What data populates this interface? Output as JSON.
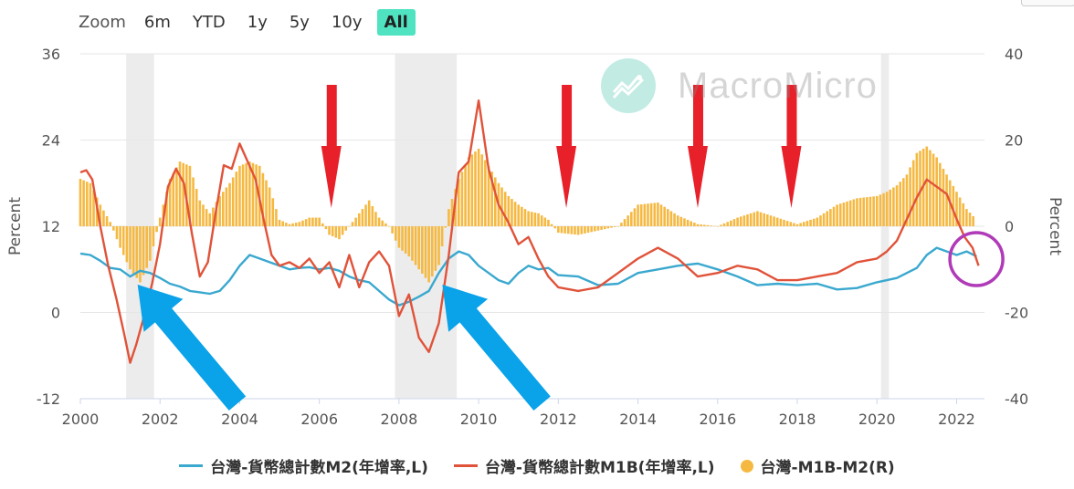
{
  "zoom": {
    "label": "Zoom",
    "buttons": [
      "6m",
      "YTD",
      "1y",
      "5y",
      "10y",
      "All"
    ],
    "active": "All"
  },
  "watermark": "MacroMicro",
  "colors": {
    "m2": "#3aa8cf",
    "m1b": "#e0533a",
    "diff": "#f5b942",
    "recession": "#ececec",
    "red_arrow": "#e8202a",
    "blue_arrow": "#0aa2e8",
    "circle": "#b03ab8",
    "active_zoom": "#50e3c2"
  },
  "legend": [
    {
      "name": "台灣-貨幣總計數M2(年增率,L)",
      "color": "#3aa8cf",
      "marker": "line"
    },
    {
      "name": "台灣-貨幣總計數M1B(年增率,L)",
      "color": "#e0533a",
      "marker": "line"
    },
    {
      "name": "台灣-M1B-M2(R)",
      "color": "#f5b942",
      "marker": "dot"
    }
  ],
  "chart_data": {
    "type": "line",
    "title": "",
    "xlabel": "",
    "ylabel_left": "Percent",
    "ylabel_right": "Percent",
    "xlim": [
      2000,
      2022.7
    ],
    "ylim_left": [
      -12,
      36
    ],
    "ylim_right": [
      -40,
      40
    ],
    "x_ticks": [
      "2000",
      "2002",
      "2004",
      "2006",
      "2008",
      "2010",
      "2012",
      "2014",
      "2016",
      "2018",
      "2020",
      "2022"
    ],
    "y_ticks_left": [
      "-12",
      "0",
      "12",
      "24",
      "36"
    ],
    "y_ticks_right": [
      "-40",
      "-20",
      "0",
      "20",
      "40"
    ],
    "grid": true,
    "recession_bands": [
      [
        2001.15,
        2001.85
      ],
      [
        2007.9,
        2009.45
      ],
      [
        2020.1,
        2020.3
      ]
    ],
    "series": [
      {
        "name": "台灣-貨幣總計數M2(年增率,L)",
        "axis": "left",
        "style": "line",
        "x": [
          2000.0,
          2000.25,
          2000.5,
          2000.75,
          2001.0,
          2001.25,
          2001.5,
          2001.75,
          2002.0,
          2002.25,
          2002.5,
          2002.75,
          2003.0,
          2003.25,
          2003.5,
          2003.75,
          2004.0,
          2004.25,
          2004.5,
          2004.75,
          2005.0,
          2005.25,
          2005.5,
          2005.75,
          2006.0,
          2006.25,
          2006.5,
          2006.75,
          2007.0,
          2007.25,
          2007.5,
          2007.75,
          2008.0,
          2008.25,
          2008.5,
          2008.75,
          2009.0,
          2009.25,
          2009.5,
          2009.75,
          2010.0,
          2010.25,
          2010.5,
          2010.75,
          2011.0,
          2011.25,
          2011.5,
          2011.75,
          2012.0,
          2012.5,
          2013.0,
          2013.5,
          2014.0,
          2014.5,
          2015.0,
          2015.5,
          2016.0,
          2016.5,
          2017.0,
          2017.5,
          2018.0,
          2018.5,
          2019.0,
          2019.5,
          2020.0,
          2020.5,
          2021.0,
          2021.25,
          2021.5,
          2021.75,
          2022.0,
          2022.25,
          2022.5
        ],
        "values": [
          8.2,
          8.0,
          7.2,
          6.2,
          6.0,
          5.0,
          5.8,
          5.5,
          4.8,
          4.0,
          3.6,
          3.0,
          2.8,
          2.6,
          3.0,
          4.5,
          6.5,
          8.0,
          7.5,
          7.0,
          6.5,
          6.0,
          6.2,
          6.3,
          6.0,
          6.2,
          5.8,
          5.0,
          4.5,
          4.2,
          3.0,
          1.8,
          1.0,
          1.5,
          2.2,
          3.0,
          5.5,
          7.5,
          8.5,
          8.0,
          6.5,
          5.5,
          4.5,
          4.0,
          5.5,
          6.5,
          6.0,
          6.2,
          5.2,
          5.0,
          3.8,
          4.0,
          5.5,
          6.0,
          6.5,
          6.8,
          6.0,
          5.0,
          3.8,
          4.0,
          3.8,
          4.0,
          3.2,
          3.4,
          4.2,
          4.8,
          6.2,
          8.0,
          9.0,
          8.5,
          8.0,
          8.5,
          7.8
        ]
      },
      {
        "name": "台灣-貨幣總計數M1B(年增率,L)",
        "axis": "left",
        "style": "line",
        "x": [
          2000.0,
          2000.15,
          2000.3,
          2000.5,
          2000.7,
          2000.9,
          2001.1,
          2001.25,
          2001.4,
          2001.6,
          2001.8,
          2002.0,
          2002.2,
          2002.4,
          2002.6,
          2002.8,
          2003.0,
          2003.2,
          2003.4,
          2003.6,
          2003.8,
          2004.0,
          2004.2,
          2004.4,
          2004.6,
          2004.8,
          2005.0,
          2005.25,
          2005.5,
          2005.75,
          2006.0,
          2006.25,
          2006.5,
          2006.75,
          2007.0,
          2007.25,
          2007.5,
          2007.75,
          2008.0,
          2008.25,
          2008.5,
          2008.75,
          2009.0,
          2009.25,
          2009.5,
          2009.75,
          2010.0,
          2010.25,
          2010.5,
          2010.75,
          2011.0,
          2011.25,
          2011.5,
          2011.75,
          2012.0,
          2012.5,
          2013.0,
          2013.5,
          2014.0,
          2014.5,
          2015.0,
          2015.5,
          2016.0,
          2016.5,
          2017.0,
          2017.5,
          2018.0,
          2018.5,
          2019.0,
          2019.5,
          2020.0,
          2020.25,
          2020.5,
          2020.75,
          2021.0,
          2021.25,
          2021.5,
          2021.75,
          2022.0,
          2022.2,
          2022.4,
          2022.55
        ],
        "values": [
          19.5,
          19.8,
          18.5,
          12.0,
          6.5,
          2.0,
          -3.0,
          -7.0,
          -4.5,
          -0.5,
          4.0,
          9.5,
          17.5,
          20.0,
          18.0,
          11.0,
          5.0,
          7.0,
          14.0,
          20.5,
          20.0,
          23.5,
          21.0,
          18.5,
          13.0,
          8.0,
          6.5,
          7.0,
          6.2,
          7.5,
          5.5,
          7.0,
          3.5,
          8.0,
          3.5,
          7.0,
          8.5,
          6.5,
          -0.5,
          2.5,
          -3.5,
          -5.5,
          -1.5,
          8.0,
          19.5,
          21.0,
          29.5,
          20.0,
          15.0,
          12.5,
          9.5,
          10.5,
          7.5,
          5.0,
          3.5,
          3.0,
          3.5,
          5.5,
          7.5,
          9.0,
          7.5,
          5.0,
          5.5,
          6.5,
          6.0,
          4.5,
          4.5,
          5.0,
          5.5,
          7.0,
          7.5,
          8.5,
          10.0,
          13.0,
          16.0,
          18.5,
          17.5,
          16.5,
          13.0,
          10.5,
          9.0,
          6.5
        ]
      },
      {
        "name": "台灣-M1B-M2(R)",
        "axis": "right",
        "style": "bar",
        "x": [
          2000.0,
          2000.25,
          2000.5,
          2000.75,
          2001.0,
          2001.25,
          2001.5,
          2001.75,
          2002.0,
          2002.25,
          2002.5,
          2002.75,
          2003.0,
          2003.25,
          2003.5,
          2003.75,
          2004.0,
          2004.25,
          2004.5,
          2004.75,
          2005.0,
          2005.25,
          2005.5,
          2005.75,
          2006.0,
          2006.25,
          2006.5,
          2006.75,
          2007.0,
          2007.25,
          2007.5,
          2007.75,
          2008.0,
          2008.25,
          2008.5,
          2008.75,
          2009.0,
          2009.25,
          2009.5,
          2009.75,
          2010.0,
          2010.25,
          2010.5,
          2010.75,
          2011.0,
          2011.25,
          2011.5,
          2011.75,
          2012.0,
          2012.5,
          2013.0,
          2013.5,
          2014.0,
          2014.5,
          2015.0,
          2015.5,
          2016.0,
          2016.5,
          2017.0,
          2017.5,
          2018.0,
          2018.5,
          2019.0,
          2019.5,
          2020.0,
          2020.25,
          2020.5,
          2020.75,
          2021.0,
          2021.25,
          2021.5,
          2021.75,
          2022.0,
          2022.25,
          2022.5
        ],
        "values": [
          11.0,
          10.0,
          5.0,
          1.0,
          -5.0,
          -10.0,
          -13.0,
          -8.0,
          2.0,
          11.0,
          15.0,
          14.0,
          6.0,
          3.0,
          7.0,
          10.0,
          14.0,
          15.0,
          14.0,
          9.0,
          1.5,
          0.5,
          1.0,
          2.0,
          2.0,
          -2.0,
          -3.0,
          0.0,
          3.0,
          6.0,
          2.0,
          0.0,
          -5.0,
          -7.0,
          -10.0,
          -13.0,
          -9.0,
          4.0,
          11.0,
          16.0,
          18.0,
          14.0,
          10.0,
          7.0,
          5.0,
          3.5,
          3.0,
          1.5,
          -1.5,
          -2.0,
          -1.0,
          0.0,
          5.0,
          5.5,
          2.5,
          0.5,
          0.0,
          2.0,
          3.5,
          2.0,
          0.5,
          2.0,
          5.0,
          6.5,
          7.0,
          8.0,
          9.5,
          12.0,
          17.0,
          18.5,
          16.0,
          12.0,
          8.0,
          4.0,
          1.5
        ]
      }
    ],
    "annotations": [
      {
        "type": "down-arrow",
        "color": "red",
        "x": 2006.3
      },
      {
        "type": "down-arrow",
        "color": "red",
        "x": 2012.2
      },
      {
        "type": "down-arrow",
        "color": "red",
        "x": 2015.5
      },
      {
        "type": "down-arrow",
        "color": "red",
        "x": 2017.85
      },
      {
        "type": "up-left-arrow",
        "color": "blue",
        "x": 2001.3
      },
      {
        "type": "up-left-arrow",
        "color": "blue",
        "x": 2008.95
      },
      {
        "type": "circle",
        "color": "purple",
        "x": 2022.45
      }
    ]
  }
}
